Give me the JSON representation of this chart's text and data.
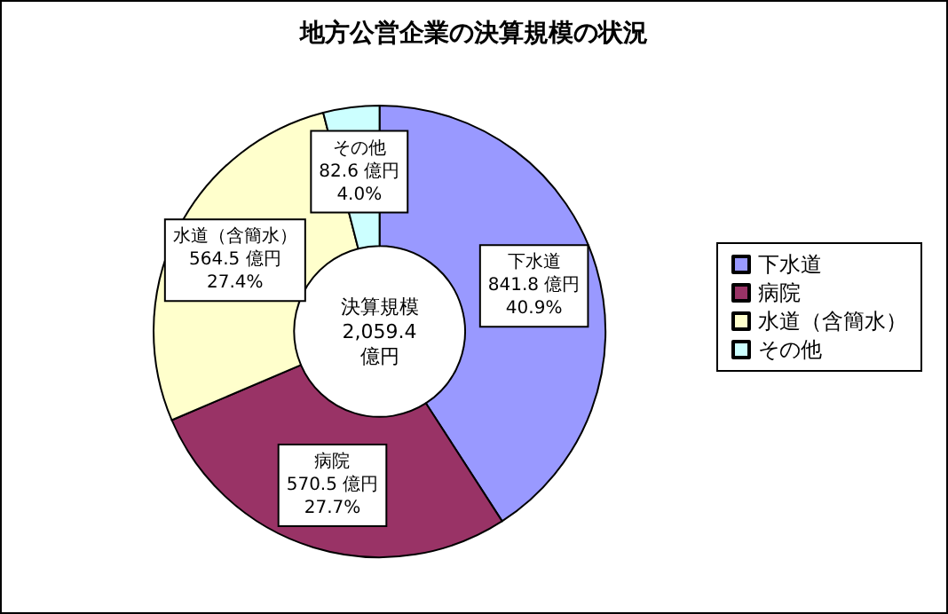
{
  "chart_data": {
    "type": "donut",
    "title": "地方公営企業の決算規模の状況",
    "categories": [
      "下水道",
      "病院",
      "水道（含簡水）",
      "その他"
    ],
    "values": [
      841.8,
      570.5,
      564.5,
      82.6
    ],
    "colors": [
      "#9999ff",
      "#993366",
      "#ffffcc",
      "#ccffff"
    ],
    "value_labels": [
      "841.8 億円\n40.9%",
      "570.5 億円\n27.7%",
      "564.5 億円\n27.4%",
      "82.6 億円\n4.0%"
    ],
    "annotations": [
      "決算規模\n2,059.4\n億円"
    ],
    "legend": "right"
  }
}
